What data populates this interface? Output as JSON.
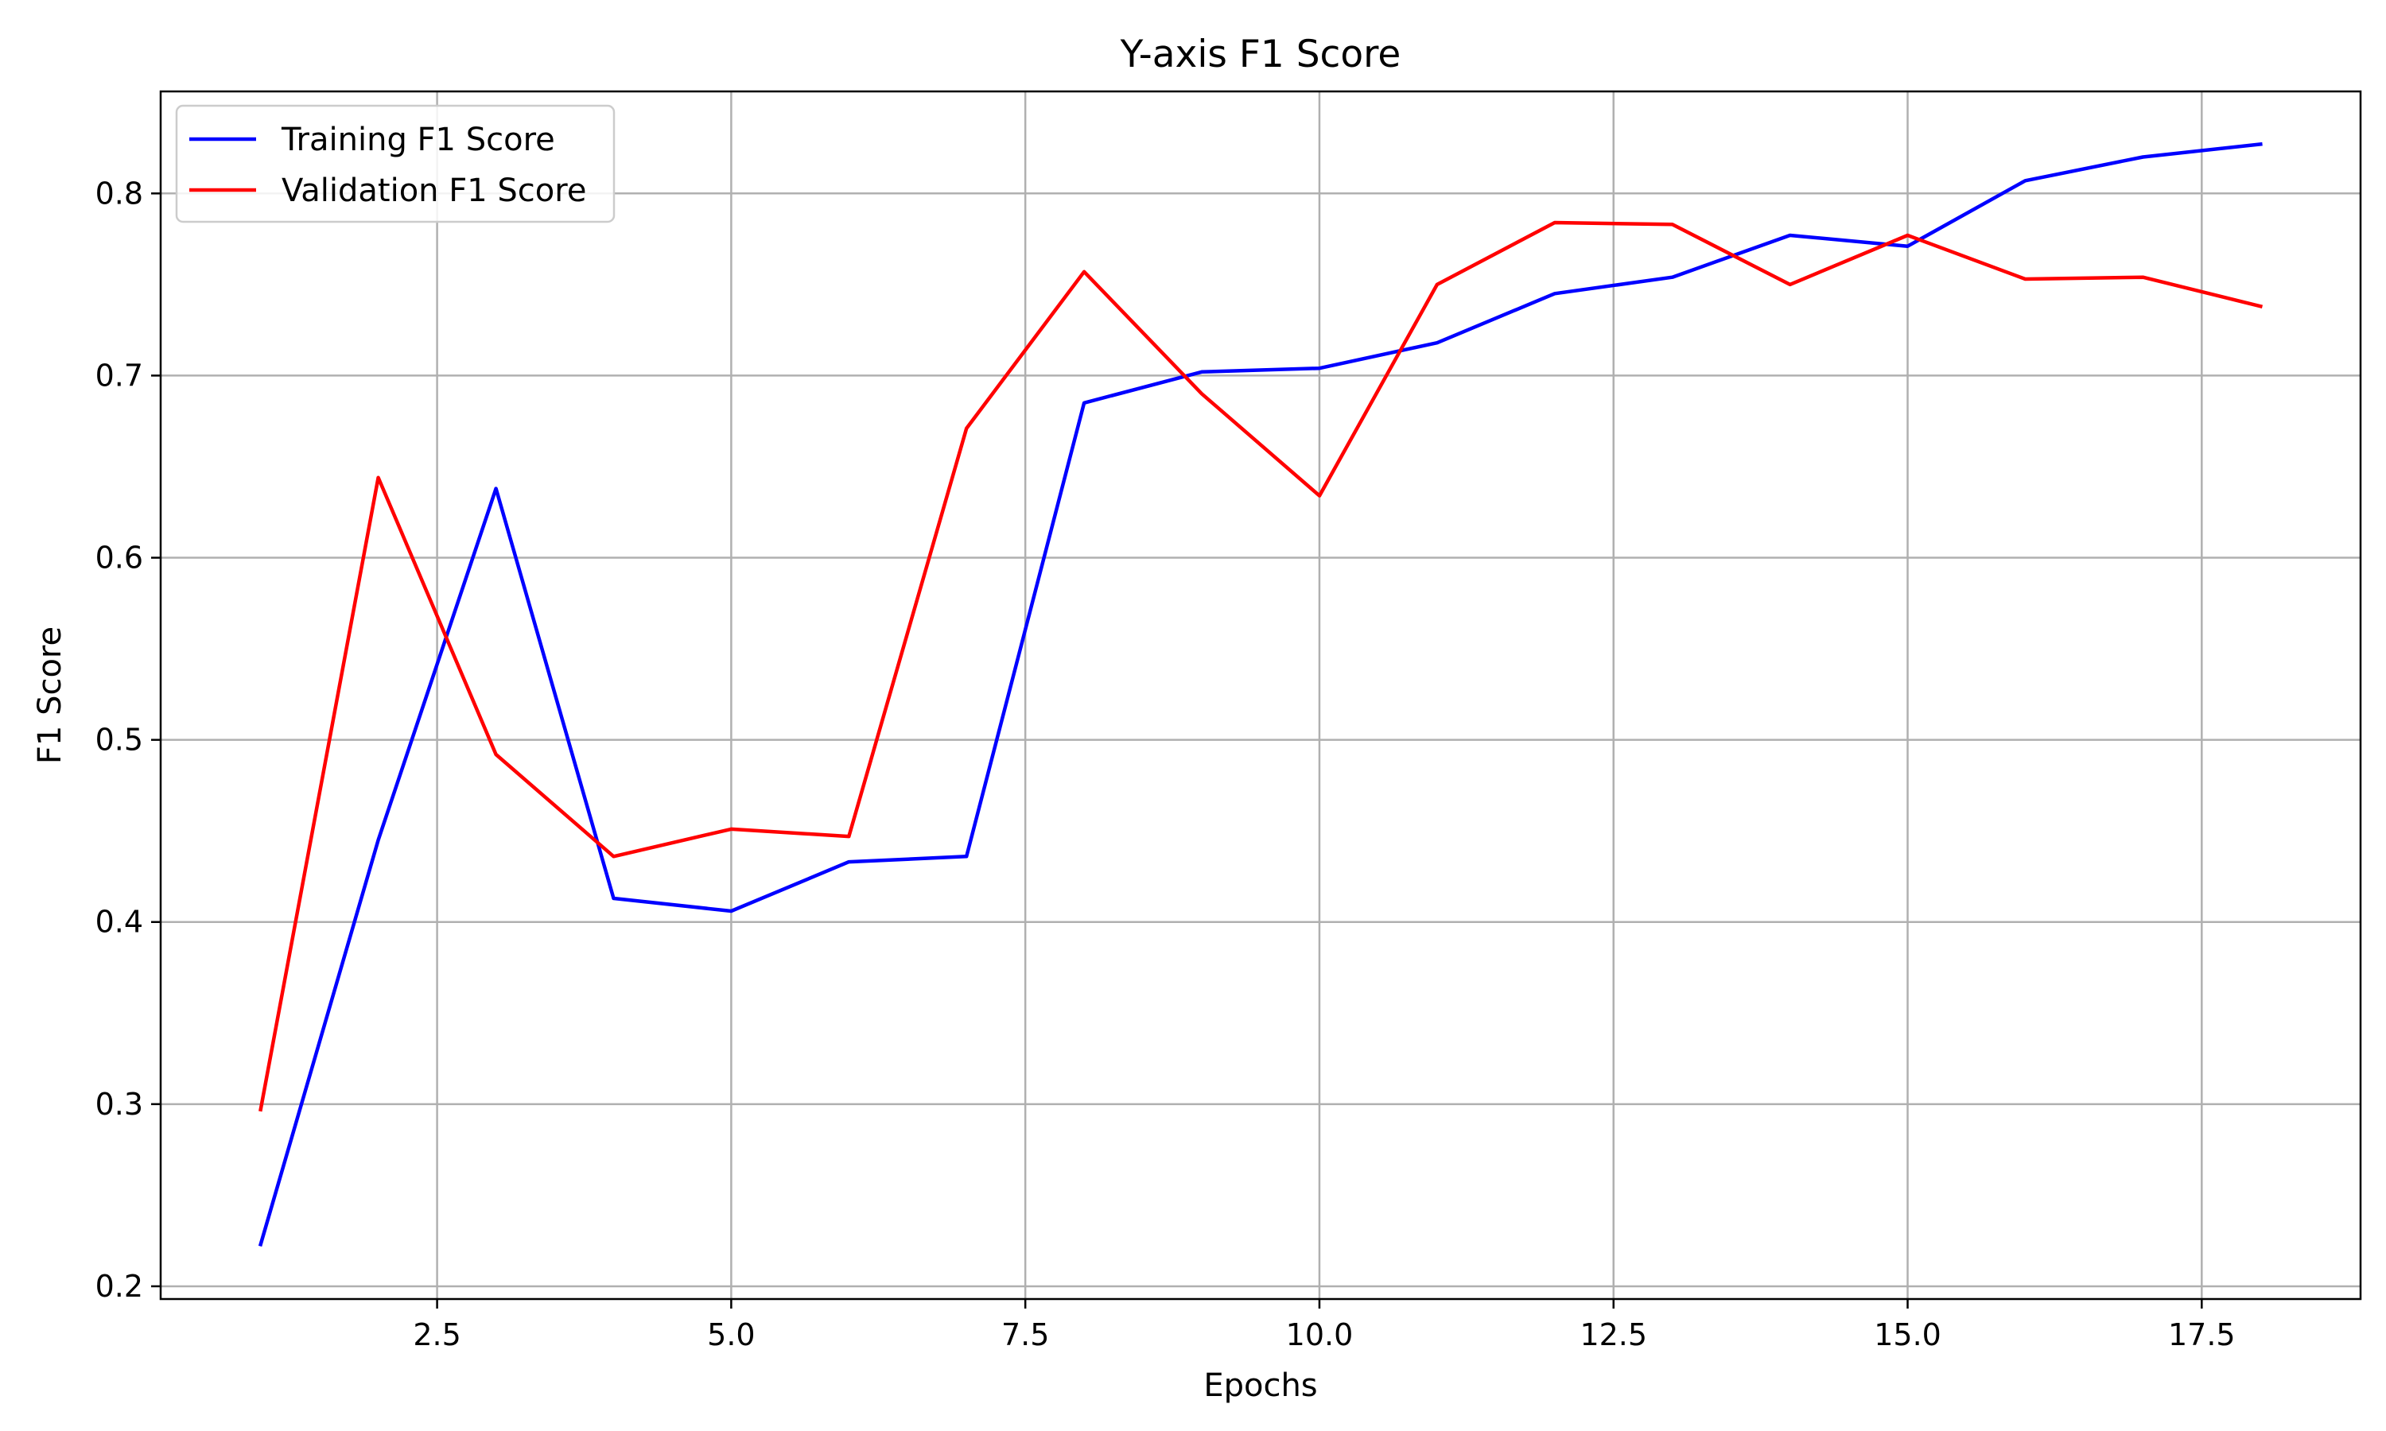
{
  "chart_data": {
    "type": "line",
    "title": "Y-axis F1 Score",
    "xlabel": "Epochs",
    "ylabel": "F1 Score",
    "xlim": [
      0.15,
      18.85
    ],
    "ylim": [
      0.193,
      0.856
    ],
    "xticks": [
      2.5,
      5.0,
      7.5,
      10.0,
      12.5,
      15.0,
      17.5
    ],
    "xtick_labels": [
      "2.5",
      "5.0",
      "7.5",
      "10.0",
      "12.5",
      "15.0",
      "17.5"
    ],
    "yticks": [
      0.2,
      0.3,
      0.4,
      0.5,
      0.6,
      0.7,
      0.8
    ],
    "ytick_labels": [
      "0.2",
      "0.3",
      "0.4",
      "0.5",
      "0.6",
      "0.7",
      "0.8"
    ],
    "grid": true,
    "legend_position": "top-left",
    "x": [
      1,
      2,
      3,
      4,
      5,
      6,
      7,
      8,
      9,
      10,
      11,
      12,
      13,
      14,
      15,
      16,
      17,
      18
    ],
    "series": [
      {
        "name": "Training F1 Score",
        "color": "#0000ff",
        "values": [
          0.223,
          0.445,
          0.638,
          0.413,
          0.406,
          0.433,
          0.436,
          0.685,
          0.702,
          0.704,
          0.718,
          0.745,
          0.754,
          0.777,
          0.771,
          0.807,
          0.82,
          0.827
        ]
      },
      {
        "name": "Validation F1 Score",
        "color": "#ff0000",
        "values": [
          0.297,
          0.644,
          0.492,
          0.436,
          0.451,
          0.447,
          0.671,
          0.757,
          0.69,
          0.634,
          0.75,
          0.784,
          0.783,
          0.75,
          0.777,
          0.753,
          0.754,
          0.738
        ]
      }
    ]
  }
}
